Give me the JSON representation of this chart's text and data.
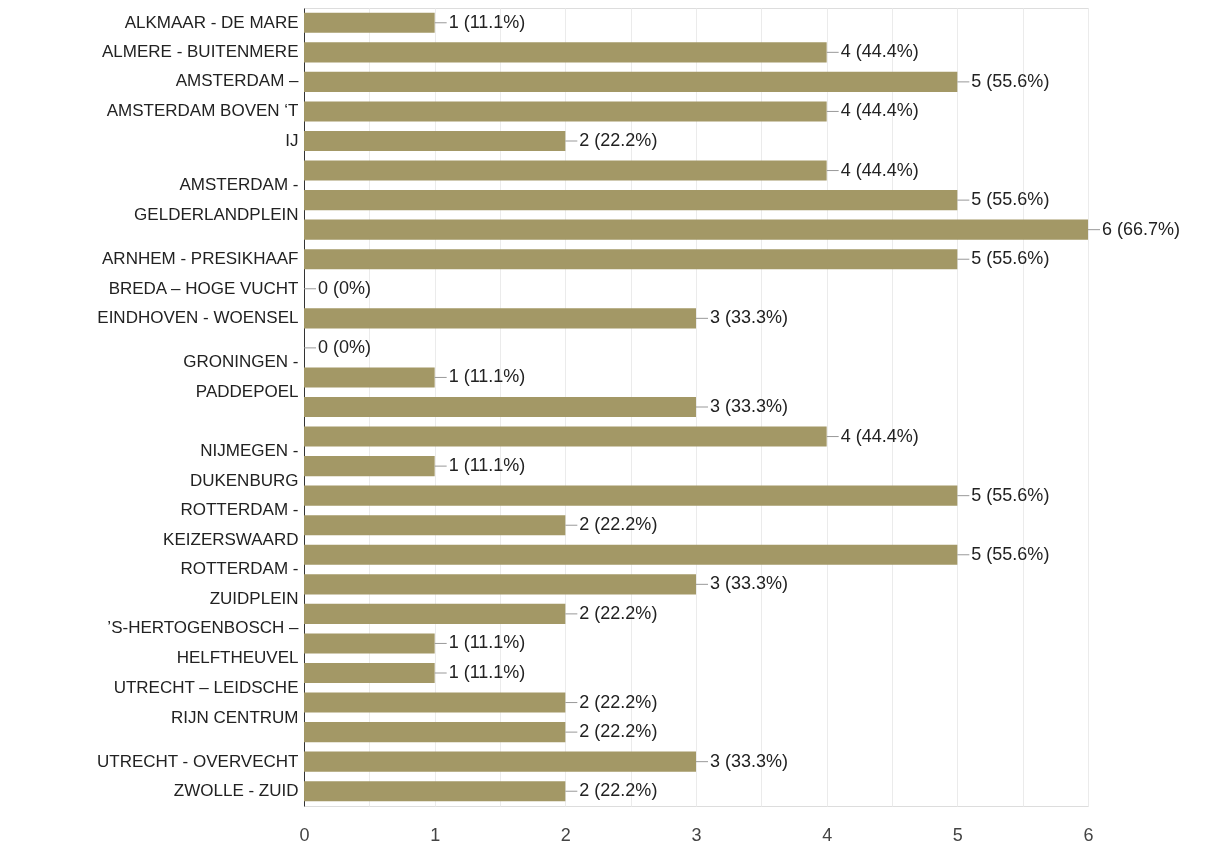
{
  "chart_data": {
    "type": "bar",
    "orientation": "horizontal",
    "categories": [
      "ALKMAAR - DE MARE",
      "ALMERE - BUITENMERE",
      null,
      "AMSTERDAM – AMSTERDAM BOVEN ‘T IJ",
      null,
      null,
      "AMSTERDAM - GELDERLANDPLEIN",
      null,
      "ARNHEM - PRESIKHAAF",
      "BREDA – HOGE VUCHT",
      "EINDHOVEN - WOENSEL",
      null,
      "GRONINGEN - PADDEPOEL",
      null,
      null,
      "NIJMEGEN - DUKENBURG",
      null,
      "ROTTERDAM - KEIZERSWAARD",
      null,
      "ROTTERDAM - ZUIDPLEIN",
      null,
      "’S-HERTOGENBOSCH – HELFTHEUVEL",
      null,
      "UTRECHT – LEIDSCHE RIJN CENTRUM",
      null,
      "UTRECHT - OVERVECHT",
      "ZWOLLE - ZUID"
    ],
    "values": [
      1,
      4,
      5,
      4,
      2,
      4,
      5,
      6,
      5,
      0,
      3,
      0,
      1,
      3,
      4,
      1,
      5,
      2,
      5,
      3,
      2,
      1,
      1,
      2,
      2,
      3,
      2
    ],
    "value_labels": [
      "1 (11.1%)",
      "4 (44.4%)",
      "5 (55.6%)",
      "4 (44.4%)",
      "2 (22.2%)",
      "4 (44.4%)",
      "5 (55.6%)",
      "6 (66.7%)",
      "5 (55.6%)",
      "0 (0%)",
      "3 (33.3%)",
      "0 (0%)",
      "1 (11.1%)",
      "3 (33.3%)",
      "4 (44.4%)",
      "1 (11.1%)",
      "5 (55.6%)",
      "2 (22.2%)",
      "5 (55.6%)",
      "3 (33.3%)",
      "2 (22.2%)",
      "1 (11.1%)",
      "1 (11.1%)",
      "2 (22.2%)",
      "2 (22.2%)",
      "3 (33.3%)",
      "2 (22.2%)"
    ],
    "color": "#a39866",
    "xlim": [
      0,
      6
    ],
    "xticks": [
      0,
      {
        "value": 0.5,
        "label": null
      },
      1,
      {
        "value": 1.5,
        "label": null
      },
      2,
      {
        "value": 2.5,
        "label": null
      },
      3,
      {
        "value": 3.5,
        "label": null
      },
      4,
      {
        "value": 4.5,
        "label": null
      },
      5,
      {
        "value": 5.5,
        "label": null
      },
      6
    ],
    "grid": "x"
  }
}
